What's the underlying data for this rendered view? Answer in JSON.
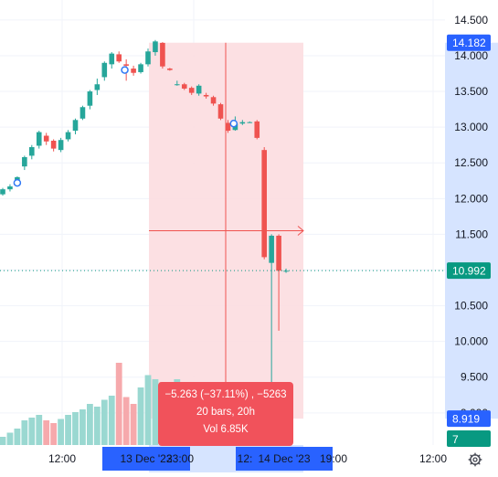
{
  "chart_data": {
    "type": "candlestick",
    "price_axis_ticks": [
      "14.500",
      "14.000",
      "13.500",
      "13.000",
      "12.500",
      "12.000",
      "11.500",
      "11.000",
      "10.500",
      "10.000",
      "9.500",
      "9.000"
    ],
    "ylim": [
      8.55,
      14.78
    ],
    "time_axis_labels": [
      {
        "text": "12:00",
        "highlighted": false
      },
      {
        "text": "13 Dec '23",
        "highlighted": true
      },
      {
        "text": "23:00",
        "highlighted": true
      },
      {
        "text": "12:",
        "highlighted": true
      },
      {
        "text": "14 Dec '23",
        "highlighted": true
      },
      {
        "text": "19:00",
        "highlighted": true
      },
      {
        "text": "12:00",
        "highlighted": false
      }
    ],
    "candles": [
      {
        "o": 12.06,
        "h": 12.15,
        "l": 12.04,
        "c": 12.13
      },
      {
        "o": 12.13,
        "h": 12.2,
        "l": 12.1,
        "c": 12.17
      },
      {
        "o": 12.2,
        "h": 12.31,
        "l": 12.19,
        "c": 12.3
      },
      {
        "o": 12.45,
        "h": 12.6,
        "l": 12.4,
        "c": 12.58
      },
      {
        "o": 12.6,
        "h": 12.75,
        "l": 12.55,
        "c": 12.72
      },
      {
        "o": 12.74,
        "h": 12.95,
        "l": 12.7,
        "c": 12.93
      },
      {
        "o": 12.88,
        "h": 12.92,
        "l": 12.75,
        "c": 12.8
      },
      {
        "o": 12.81,
        "h": 12.83,
        "l": 12.66,
        "c": 12.7
      },
      {
        "o": 12.68,
        "h": 12.85,
        "l": 12.65,
        "c": 12.82
      },
      {
        "o": 12.83,
        "h": 12.96,
        "l": 12.8,
        "c": 12.93
      },
      {
        "o": 12.95,
        "h": 13.12,
        "l": 12.9,
        "c": 13.1
      },
      {
        "o": 13.12,
        "h": 13.3,
        "l": 13.1,
        "c": 13.28
      },
      {
        "o": 13.3,
        "h": 13.52,
        "l": 13.25,
        "c": 13.5
      },
      {
        "o": 13.52,
        "h": 13.68,
        "l": 13.45,
        "c": 13.6
      },
      {
        "o": 13.7,
        "h": 13.92,
        "l": 13.65,
        "c": 13.9
      },
      {
        "o": 13.88,
        "h": 14.05,
        "l": 13.82,
        "c": 14.03
      },
      {
        "o": 14.02,
        "h": 14.06,
        "l": 13.9,
        "c": 13.92
      },
      {
        "o": 13.88,
        "h": 13.95,
        "l": 13.65,
        "c": 13.86
      },
      {
        "o": 13.82,
        "h": 13.86,
        "l": 13.72,
        "c": 13.76
      },
      {
        "o": 13.77,
        "h": 13.9,
        "l": 13.75,
        "c": 13.88
      },
      {
        "o": 13.88,
        "h": 14.1,
        "l": 13.85,
        "c": 14.06
      },
      {
        "o": 14.05,
        "h": 14.22,
        "l": 14.0,
        "c": 14.2
      },
      {
        "o": 14.18,
        "h": 14.19,
        "l": 13.82,
        "c": 13.85
      },
      {
        "o": 13.82,
        "h": 13.83,
        "l": 13.79,
        "c": 13.8
      },
      {
        "o": 13.6,
        "h": 13.65,
        "l": 13.58,
        "c": 13.6
      },
      {
        "o": 13.6,
        "h": 13.62,
        "l": 13.52,
        "c": 13.54
      },
      {
        "o": 13.55,
        "h": 13.57,
        "l": 13.45,
        "c": 13.48
      },
      {
        "o": 13.47,
        "h": 13.6,
        "l": 13.44,
        "c": 13.58
      },
      {
        "o": 13.45,
        "h": 13.48,
        "l": 13.4,
        "c": 13.43
      },
      {
        "o": 13.42,
        "h": 13.44,
        "l": 13.3,
        "c": 13.33
      },
      {
        "o": 13.32,
        "h": 13.34,
        "l": 13.1,
        "c": 13.12
      },
      {
        "o": 13.06,
        "h": 13.1,
        "l": 12.92,
        "c": 12.95
      },
      {
        "o": 12.96,
        "h": 13.15,
        "l": 12.95,
        "c": 13.05
      },
      {
        "o": 13.05,
        "h": 13.1,
        "l": 13.03,
        "c": 13.07
      },
      {
        "o": 13.07,
        "h": 13.08,
        "l": 13.06,
        "c": 13.07
      },
      {
        "o": 13.08,
        "h": 13.1,
        "l": 12.83,
        "c": 12.85
      },
      {
        "o": 12.68,
        "h": 12.72,
        "l": 11.15,
        "c": 11.18
      },
      {
        "o": 11.1,
        "h": 11.5,
        "l": 9.0,
        "c": 11.48
      },
      {
        "o": 11.48,
        "h": 11.5,
        "l": 10.15,
        "c": 10.99
      },
      {
        "o": 10.99,
        "h": 11.02,
        "l": 10.96,
        "c": 10.99
      }
    ],
    "volume": [
      0.06,
      0.09,
      0.12,
      0.18,
      0.2,
      0.22,
      0.18,
      0.16,
      0.19,
      0.22,
      0.24,
      0.26,
      0.3,
      0.28,
      0.33,
      0.36,
      0.6,
      0.35,
      0.3,
      0.42,
      0.51,
      0.48,
      0.46,
      0.44,
      0.48,
      0.4,
      0.36,
      0.3,
      0.26,
      0.2,
      0.16,
      0.12,
      0.08,
      0.06,
      0.05,
      0.04,
      0.07,
      0.18,
      0.2,
      0.15
    ],
    "measure": {
      "line1": "−5.263 (−37.11%) , −5263",
      "line2": "20 bars, 20h",
      "line3": "Vol 6.85K"
    },
    "price_badges": [
      {
        "text": "14.182",
        "kind": "range-top"
      },
      {
        "text": "10.992",
        "kind": "last-price"
      },
      {
        "text": "8.919",
        "kind": "range-bottom"
      }
    ],
    "volume_badge": "7",
    "colors": {
      "up": "#26a69a",
      "down": "#ef5350",
      "up_volume": "#9ad8d1",
      "down_volume": "#f6a9ac",
      "range_fill": "#fcdde0",
      "axis_highlight": "#d6e4ff",
      "badge_blue": "#2962ff",
      "tooltip": "#f1525b",
      "last_price": "#089981"
    }
  }
}
